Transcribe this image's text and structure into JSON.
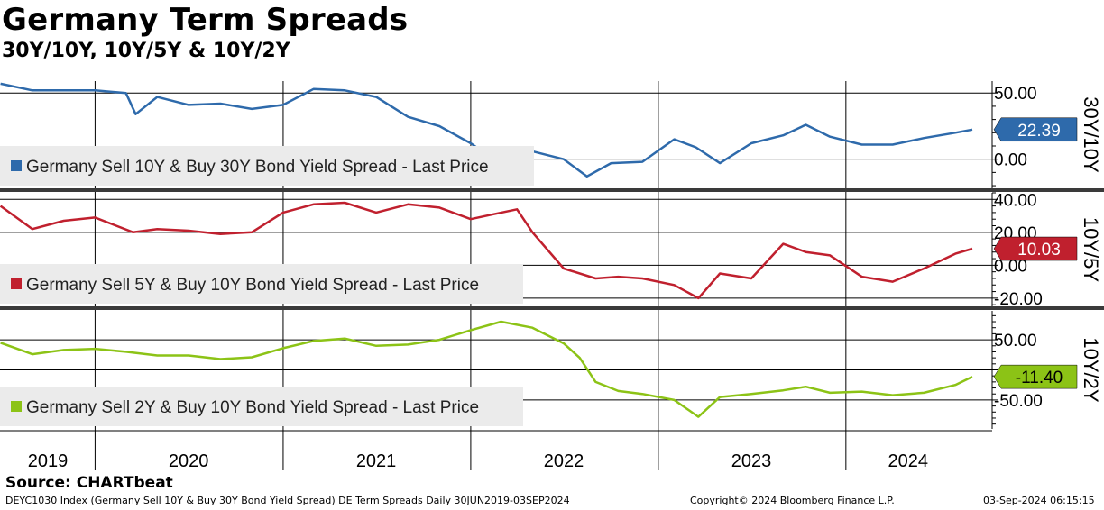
{
  "header": {
    "title": "Germany Term Spreads",
    "subtitle": "30Y/10Y, 10Y/5Y & 10Y/2Y"
  },
  "footer": {
    "source": "Source: CHARTbeat",
    "info": "DEYC1030 Index (Germany Sell 10Y & Buy 30Y Bond Yield Spread) DE Term Spreads  Daily 30JUN2019-03SEP2024",
    "copyright": "Copyright© 2024 Bloomberg Finance L.P.",
    "timestamp": "03-Sep-2024 06:15:15"
  },
  "chart_data": {
    "type": "line",
    "x_start": "2019-06-30",
    "x_end": "2024-09-03",
    "x_tick_labels": [
      "2019",
      "2020",
      "2021",
      "2022",
      "2023",
      "2024"
    ],
    "panels": [
      {
        "axis_title": "30Y/10Y",
        "legend": "Germany Sell 10Y & Buy 30Y Bond Yield Spread - Last Price",
        "color": "#2e6aab",
        "ylim": [
          -22,
          59
        ],
        "y_ticks": [
          50,
          0
        ],
        "y_tick_labels": [
          "50.00",
          "0.00"
        ],
        "last_label": "22.39",
        "last_value": 22.39,
        "series": {
          "x": [
            "2019-07-01",
            "2019-09-01",
            "2019-11-01",
            "2020-01-01",
            "2020-03-01",
            "2020-03-20",
            "2020-05-01",
            "2020-07-01",
            "2020-09-01",
            "2020-11-01",
            "2021-01-01",
            "2021-03-01",
            "2021-05-01",
            "2021-07-01",
            "2021-09-01",
            "2021-11-01",
            "2022-01-01",
            "2022-03-01",
            "2022-05-01",
            "2022-07-01",
            "2022-08-15",
            "2022-10-01",
            "2022-12-01",
            "2023-02-01",
            "2023-03-15",
            "2023-05-01",
            "2023-07-01",
            "2023-09-01",
            "2023-10-15",
            "2023-12-01",
            "2024-02-01",
            "2024-04-01",
            "2024-06-01",
            "2024-08-01",
            "2024-09-03"
          ],
          "y": [
            57,
            52,
            52,
            52,
            50,
            34,
            47,
            41,
            42,
            38,
            41,
            53,
            52,
            47,
            32,
            25,
            12,
            -4,
            6,
            0,
            -13,
            -3,
            -2,
            15,
            9,
            -3,
            12,
            18,
            26,
            17,
            11,
            11,
            16,
            20,
            22.39
          ]
        }
      },
      {
        "axis_title": "10Y/5Y",
        "legend": "Germany Sell 5Y & Buy 10Y Bond Yield Spread - Last Price",
        "color": "#c0202e",
        "ylim": [
          -25,
          44
        ],
        "y_ticks": [
          40,
          20,
          0,
          -20
        ],
        "y_tick_labels": [
          "40.00",
          "20.00",
          "0.00",
          "-20.00"
        ],
        "last_label": "10.03",
        "last_value": 10.03,
        "series": {
          "x": [
            "2019-07-01",
            "2019-09-01",
            "2019-11-01",
            "2020-01-01",
            "2020-03-15",
            "2020-05-01",
            "2020-07-01",
            "2020-09-01",
            "2020-11-01",
            "2021-01-01",
            "2021-03-01",
            "2021-05-01",
            "2021-07-01",
            "2021-09-01",
            "2021-11-01",
            "2022-01-01",
            "2022-02-15",
            "2022-04-01",
            "2022-05-01",
            "2022-07-01",
            "2022-09-01",
            "2022-10-15",
            "2022-12-01",
            "2023-02-01",
            "2023-03-20",
            "2023-05-01",
            "2023-07-01",
            "2023-09-01",
            "2023-10-15",
            "2023-12-01",
            "2024-02-01",
            "2024-04-01",
            "2024-06-01",
            "2024-08-01",
            "2024-09-03"
          ],
          "y": [
            36,
            22,
            27,
            29,
            20,
            22,
            21,
            19,
            20,
            32,
            37,
            38,
            32,
            37,
            35,
            28,
            31,
            34,
            20,
            -2,
            -8,
            -7,
            -8,
            -12,
            -20,
            -5,
            -8,
            13,
            8,
            6,
            -7,
            -10,
            -2,
            7,
            10.03
          ]
        }
      },
      {
        "axis_title": "10Y/2Y",
        "legend": "Germany Sell 2Y & Buy 10Y Bond Yield Spread - Last Price",
        "color": "#8cc316",
        "ylim": [
          -98,
          98
        ],
        "y_ticks": [
          50,
          0,
          -50
        ],
        "y_tick_labels": [
          "50.00",
          "-50.00"
        ],
        "last_label": "-11.40",
        "last_value": -11.4,
        "series": {
          "x": [
            "2019-07-01",
            "2019-09-01",
            "2019-11-01",
            "2020-01-01",
            "2020-03-01",
            "2020-05-01",
            "2020-07-01",
            "2020-09-01",
            "2020-11-01",
            "2021-01-01",
            "2021-03-01",
            "2021-05-01",
            "2021-07-01",
            "2021-09-01",
            "2021-11-01",
            "2022-01-01",
            "2022-03-01",
            "2022-05-01",
            "2022-07-01",
            "2022-08-01",
            "2022-09-01",
            "2022-10-15",
            "2022-12-01",
            "2023-02-01",
            "2023-03-20",
            "2023-05-01",
            "2023-07-01",
            "2023-09-01",
            "2023-10-15",
            "2023-12-01",
            "2024-02-01",
            "2024-04-01",
            "2024-06-01",
            "2024-08-01",
            "2024-09-03"
          ],
          "y": [
            45,
            26,
            33,
            35,
            30,
            24,
            24,
            18,
            21,
            36,
            48,
            52,
            40,
            42,
            50,
            66,
            80,
            70,
            44,
            20,
            -20,
            -35,
            -40,
            -50,
            -78,
            -45,
            -40,
            -34,
            -28,
            -38,
            -36,
            -42,
            -38,
            -25,
            -11.4
          ]
        }
      }
    ]
  }
}
